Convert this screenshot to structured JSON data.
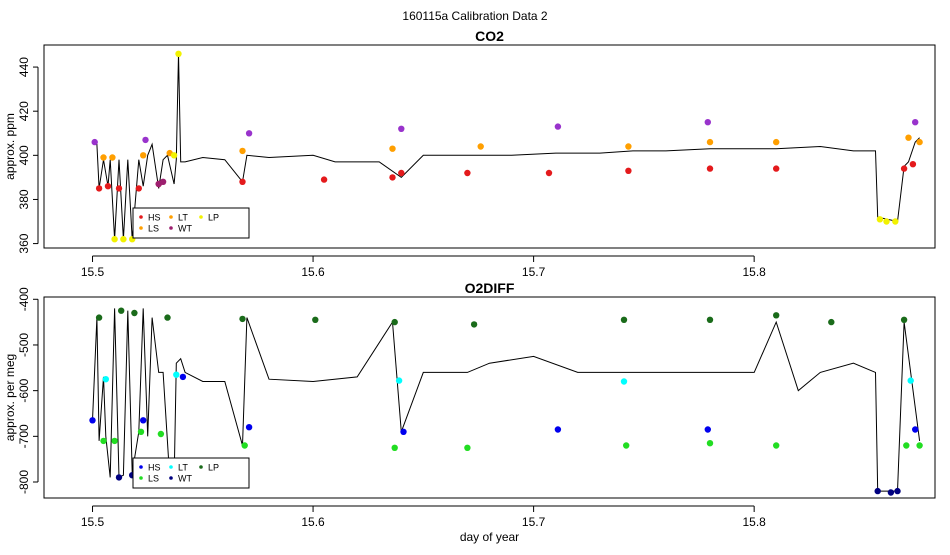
{
  "figure_title": "160115a   Calibration Data 2",
  "chart_data": [
    {
      "type": "line",
      "title": "CO2",
      "xlabel": "",
      "ylabel": "approx. ppm",
      "xlim": [
        15.478,
        15.882
      ],
      "ylim": [
        358,
        450
      ],
      "xticks": [
        15.5,
        15.6,
        15.7,
        15.8
      ],
      "yticks": [
        360,
        380,
        400,
        420,
        440
      ],
      "grid": false,
      "legend_position": "bottom-left",
      "legend": [
        {
          "label": "HS",
          "color": "#e41a1c"
        },
        {
          "label": "LS",
          "color": "#ff9f00"
        },
        {
          "label": "LT",
          "color": "#ff9f00"
        },
        {
          "label": "WT",
          "color": "#9d1f6f"
        },
        {
          "label": "LP",
          "color": "#f2f200"
        }
      ],
      "series": [
        {
          "color": "#000000",
          "x": [
            15.5,
            15.502,
            15.503,
            15.505,
            15.507,
            15.508,
            15.51,
            15.512,
            15.514,
            15.516,
            15.518,
            15.521,
            15.523,
            15.525,
            15.527,
            15.53,
            15.532,
            15.534,
            15.537,
            15.538,
            15.539,
            15.54,
            15.542,
            15.55,
            15.56,
            15.568,
            15.57,
            15.58,
            15.6,
            15.61,
            15.63,
            15.64,
            15.65,
            15.67,
            15.69,
            15.71,
            15.73,
            15.745,
            15.76,
            15.78,
            15.8,
            15.81,
            15.83,
            15.845,
            15.855,
            15.856,
            15.865,
            15.868,
            15.87,
            15.873,
            15.875
          ],
          "y": [
            406,
            405,
            385,
            398,
            386,
            398,
            362,
            398,
            362,
            398,
            362,
            398,
            386,
            400,
            405,
            385,
            398,
            400,
            387,
            398,
            446,
            397,
            397,
            399,
            398,
            388,
            400,
            399,
            400,
            397,
            397,
            390,
            400,
            400,
            400,
            401,
            401,
            402,
            402,
            403,
            403,
            403,
            404,
            402,
            402,
            372,
            370,
            395,
            397,
            406,
            408
          ]
        },
        {
          "name": "HS",
          "color": "#e41a1c",
          "x": [
            15.503,
            15.507,
            15.512,
            15.521,
            15.53,
            15.568,
            15.605,
            15.636,
            15.64,
            15.67,
            15.707,
            15.743,
            15.78,
            15.81,
            15.868,
            15.872
          ],
          "y": [
            385,
            386,
            385,
            385,
            387,
            388,
            389,
            390,
            392,
            392,
            392,
            393,
            394,
            394,
            394,
            396
          ]
        },
        {
          "name": "LS",
          "color": "#ff9f00",
          "x": [
            15.505,
            15.509,
            15.523,
            15.535,
            15.568,
            15.636,
            15.676,
            15.743,
            15.78,
            15.81,
            15.87,
            15.875
          ],
          "y": [
            399,
            399,
            400,
            401,
            402,
            403,
            404,
            404,
            406,
            406,
            408,
            406
          ]
        },
        {
          "name": "WT",
          "color": "#9d1f6f",
          "x": [
            15.53,
            15.532
          ],
          "y": [
            387,
            388
          ]
        },
        {
          "name": "LP",
          "color": "#f2f200",
          "x": [
            15.51,
            15.514,
            15.518,
            15.537,
            15.539,
            15.857,
            15.86,
            15.864
          ],
          "y": [
            362,
            362,
            362,
            400,
            446,
            371,
            370,
            370
          ]
        },
        {
          "name": "",
          "color": "#9933cc",
          "x": [
            15.501,
            15.524,
            15.571,
            15.64,
            15.711,
            15.779,
            15.873
          ],
          "y": [
            406,
            407,
            410,
            412,
            413,
            415,
            415
          ]
        }
      ]
    },
    {
      "type": "line",
      "title": "O2DIFF",
      "xlabel": "day of year",
      "ylabel": "approx. per meg",
      "xlim": [
        15.478,
        15.882
      ],
      "ylim": [
        -835,
        -395
      ],
      "xticks": [
        15.5,
        15.6,
        15.7,
        15.8
      ],
      "yticks": [
        -400,
        -500,
        -600,
        -700,
        -800
      ],
      "grid": false,
      "legend_position": "bottom-left",
      "legend": [
        {
          "label": "HS",
          "color": "#0000ee"
        },
        {
          "label": "LS",
          "color": "#22dd22"
        },
        {
          "label": "LT",
          "color": "#00ffff"
        },
        {
          "label": "WT",
          "color": "#000080"
        },
        {
          "label": "LP",
          "color": "#1a6b1a"
        }
      ],
      "series": [
        {
          "color": "#000000",
          "x": [
            15.5,
            15.502,
            15.503,
            15.505,
            15.506,
            15.508,
            15.51,
            15.512,
            15.514,
            15.516,
            15.518,
            15.521,
            15.523,
            15.525,
            15.527,
            15.53,
            15.532,
            15.535,
            15.537,
            15.538,
            15.54,
            15.542,
            15.55,
            15.56,
            15.568,
            15.57,
            15.58,
            15.6,
            15.62,
            15.636,
            15.64,
            15.65,
            15.67,
            15.68,
            15.7,
            15.72,
            15.745,
            15.76,
            15.78,
            15.8,
            15.81,
            15.82,
            15.83,
            15.845,
            15.855,
            15.856,
            15.865,
            15.868,
            15.875
          ],
          "y": [
            -665,
            -440,
            -710,
            -570,
            -700,
            -790,
            -420,
            -790,
            -785,
            -425,
            -780,
            -690,
            -420,
            -700,
            -440,
            -560,
            -560,
            -790,
            -800,
            -540,
            -530,
            -560,
            -580,
            -580,
            -720,
            -440,
            -575,
            -580,
            -570,
            -450,
            -690,
            -560,
            -560,
            -540,
            -525,
            -560,
            -560,
            -560,
            -560,
            -560,
            -450,
            -600,
            -560,
            -540,
            -560,
            -820,
            -820,
            -450,
            -710
          ]
        },
        {
          "name": "HS",
          "color": "#0000ee",
          "x": [
            15.5,
            15.523,
            15.571,
            15.641,
            15.711,
            15.779,
            15.873,
            15.541
          ],
          "y": [
            -665,
            -665,
            -680,
            -690,
            -685,
            -685,
            -685,
            -570
          ]
        },
        {
          "name": "LS",
          "color": "#22dd22",
          "x": [
            15.505,
            15.51,
            15.522,
            15.531,
            15.569,
            15.637,
            15.67,
            15.742,
            15.78,
            15.81,
            15.869,
            15.875
          ],
          "y": [
            -710,
            -710,
            -690,
            -695,
            -720,
            -725,
            -725,
            -720,
            -715,
            -720,
            -720,
            -720
          ]
        },
        {
          "name": "LT",
          "color": "#00ffff",
          "x": [
            15.506,
            15.538,
            15.639,
            15.741,
            15.871
          ],
          "y": [
            -575,
            -565,
            -578,
            -580,
            -578
          ]
        },
        {
          "name": "WT",
          "color": "#000080",
          "x": [
            15.512,
            15.518,
            15.538,
            15.856,
            15.862,
            15.865
          ],
          "y": [
            -790,
            -785,
            -800,
            -820,
            -823,
            -820
          ]
        },
        {
          "name": "LP",
          "color": "#1a6b1a",
          "x": [
            15.503,
            15.513,
            15.519,
            15.534,
            15.568,
            15.601,
            15.637,
            15.673,
            15.741,
            15.78,
            15.81,
            15.835,
            15.868
          ],
          "y": [
            -440,
            -425,
            -430,
            -440,
            -443,
            -445,
            -450,
            -455,
            -445,
            -445,
            -435,
            -450,
            -445
          ]
        }
      ]
    }
  ]
}
